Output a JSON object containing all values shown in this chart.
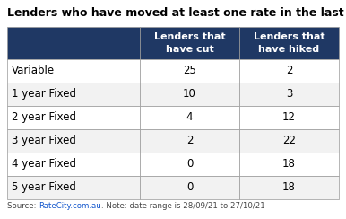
{
  "title": "Lenders who have moved at least one rate in the last month",
  "col_headers": [
    "Lenders that\nhave cut",
    "Lenders that\nhave hiked"
  ],
  "row_labels": [
    "Variable",
    "1 year Fixed",
    "2 year Fixed",
    "3 year Fixed",
    "4 year Fixed",
    "5 year Fixed"
  ],
  "cut_values": [
    25,
    10,
    4,
    2,
    0,
    0
  ],
  "hike_values": [
    2,
    3,
    12,
    22,
    18,
    18
  ],
  "header_bg": "#1f3864",
  "header_text": "#ffffff",
  "row_bg": "#ffffff",
  "row_text": "#000000",
  "border_color": "#999999",
  "source_pre": "Source: ",
  "source_link": "RateCity.com.au",
  "source_post": ". Note: date range is 28/09/21 to 27/10/21",
  "source_link_color": "#1155cc",
  "source_text_color": "#444444",
  "title_fontsize": 9.0,
  "header_fontsize": 8.0,
  "cell_fontsize": 8.5,
  "source_fontsize": 6.2,
  "fig_width": 3.86,
  "fig_height": 2.44,
  "dpi": 100
}
